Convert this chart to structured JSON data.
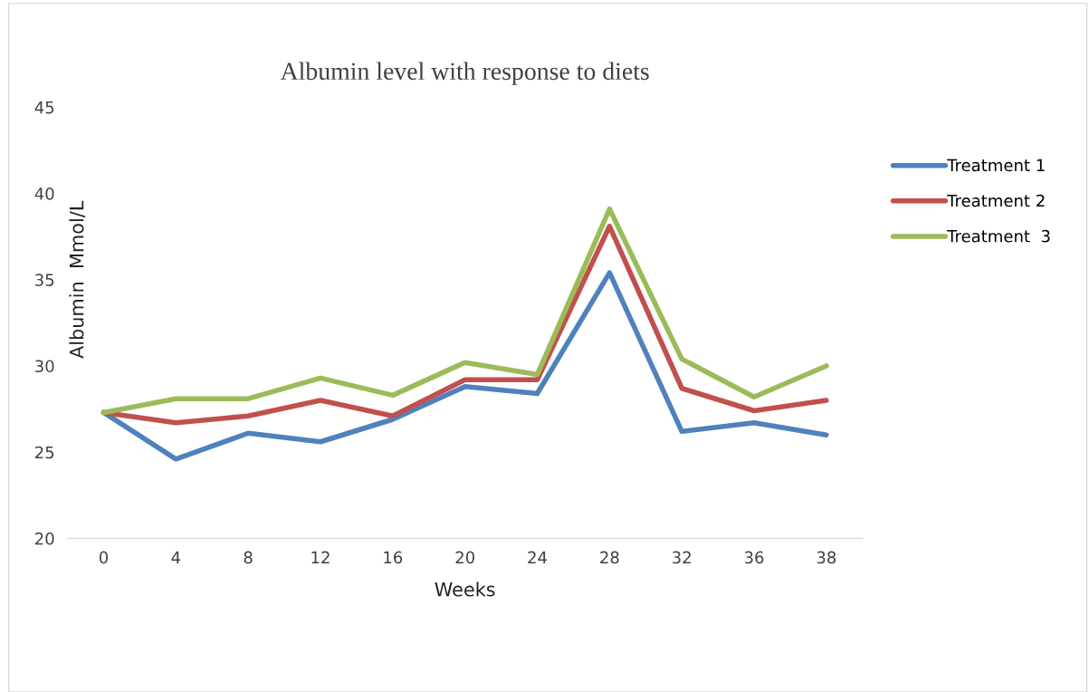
{
  "chart_data": {
    "type": "line",
    "title": "Albumin level with response to diets",
    "xlabel": "Weeks",
    "ylabel": "Albumin  Mmol/L",
    "categories": [
      "0",
      "4",
      "8",
      "12",
      "16",
      "20",
      "24",
      "28",
      "32",
      "36",
      "38"
    ],
    "series": [
      {
        "name": "Treatment 1",
        "color": "#4f81bd",
        "values": [
          27.3,
          24.6,
          26.1,
          25.6,
          26.9,
          28.8,
          28.4,
          35.4,
          26.2,
          26.7,
          26.0
        ]
      },
      {
        "name": "Treatment 2",
        "color": "#c0504d",
        "values": [
          27.3,
          26.7,
          27.1,
          28.0,
          27.1,
          29.2,
          29.2,
          38.1,
          28.7,
          27.4,
          28.0
        ]
      },
      {
        "name": "Treatment  3",
        "color": "#9bbb59",
        "values": [
          27.3,
          28.1,
          28.1,
          29.3,
          28.3,
          30.2,
          29.5,
          39.1,
          30.4,
          28.2,
          30.0
        ]
      }
    ],
    "ylim": [
      20,
      45
    ],
    "yticks": [
      20,
      25,
      30,
      35,
      40,
      45
    ],
    "grid": false,
    "legend": "right",
    "marker": "none",
    "line_style": "solid"
  }
}
